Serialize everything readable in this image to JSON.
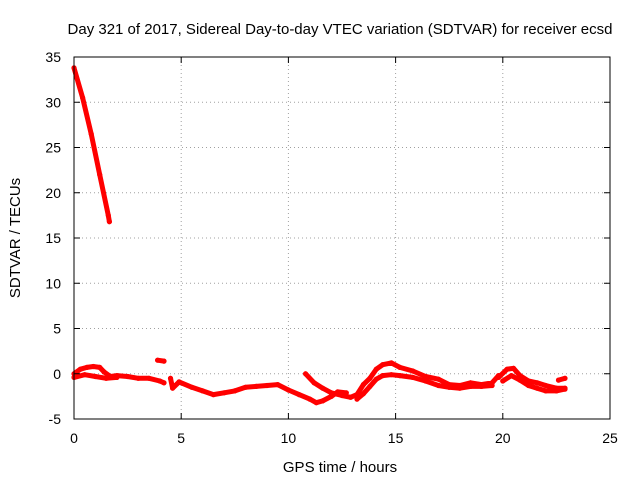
{
  "chart_data": {
    "type": "scatter",
    "title": "Day 321 of 2017, Sidereal Day-to-day VTEC variation (SDTVAR) for receiver ecsd",
    "xlabel": "GPS time / hours",
    "ylabel": "SDTVAR / TECUs",
    "xlim": [
      0,
      25
    ],
    "ylim": [
      -5,
      35
    ],
    "xticks": [
      "0",
      "5",
      "10",
      "15",
      "20",
      "25"
    ],
    "yticks": [
      "-5",
      "0",
      "5",
      "10",
      "15",
      "20",
      "25",
      "30",
      "35"
    ],
    "grid": true,
    "series": [
      {
        "name": "SDTVAR",
        "color": "#ff0000",
        "segments": [
          [
            [
              0.0,
              33.8
            ],
            [
              0.4,
              30.5
            ],
            [
              0.8,
              26.5
            ],
            [
              1.2,
              22.0
            ],
            [
              1.6,
              17.5
            ],
            [
              1.65,
              16.8
            ]
          ],
          [
            [
              0.0,
              0.0
            ],
            [
              0.3,
              0.5
            ],
            [
              0.6,
              0.7
            ],
            [
              0.9,
              0.8
            ],
            [
              1.2,
              0.7
            ],
            [
              1.4,
              0.2
            ],
            [
              1.7,
              -0.3
            ],
            [
              2.0,
              -0.2
            ],
            [
              2.5,
              -0.3
            ],
            [
              3.0,
              -0.5
            ],
            [
              3.5,
              -0.5
            ],
            [
              4.0,
              -0.8
            ],
            [
              4.2,
              -1.0
            ]
          ],
          [
            [
              0.0,
              -0.4
            ],
            [
              0.5,
              -0.1
            ],
            [
              1.0,
              -0.3
            ],
            [
              1.5,
              -0.5
            ],
            [
              2.0,
              -0.4
            ]
          ],
          [
            [
              3.9,
              1.5
            ],
            [
              4.2,
              1.4
            ]
          ],
          [
            [
              4.5,
              -0.5
            ],
            [
              4.6,
              -1.6
            ],
            [
              4.9,
              -0.9
            ],
            [
              5.5,
              -1.5
            ],
            [
              6.0,
              -1.9
            ],
            [
              6.5,
              -2.3
            ],
            [
              7.0,
              -2.1
            ],
            [
              7.5,
              -1.9
            ],
            [
              8.0,
              -1.5
            ],
            [
              8.5,
              -1.4
            ],
            [
              9.0,
              -1.3
            ],
            [
              9.5,
              -1.2
            ],
            [
              10.0,
              -1.8
            ],
            [
              10.5,
              -2.3
            ],
            [
              11.0,
              -2.8
            ],
            [
              11.3,
              -3.2
            ],
            [
              11.6,
              -3.0
            ],
            [
              12.0,
              -2.5
            ],
            [
              12.3,
              -2.0
            ],
            [
              12.7,
              -2.1
            ]
          ],
          [
            [
              10.8,
              0.0
            ],
            [
              11.2,
              -1.0
            ],
            [
              11.6,
              -1.6
            ],
            [
              12.0,
              -2.1
            ],
            [
              12.5,
              -2.4
            ],
            [
              12.9,
              -2.6
            ],
            [
              13.2,
              -2.3
            ],
            [
              13.5,
              -1.2
            ],
            [
              13.8,
              -0.5
            ],
            [
              14.1,
              0.5
            ],
            [
              14.4,
              1.0
            ],
            [
              14.8,
              1.2
            ],
            [
              15.2,
              0.7
            ],
            [
              15.8,
              0.3
            ],
            [
              16.4,
              -0.3
            ],
            [
              17.0,
              -0.6
            ],
            [
              17.5,
              -1.2
            ],
            [
              18.0,
              -1.3
            ],
            [
              18.5,
              -1.0
            ],
            [
              19.0,
              -1.2
            ],
            [
              19.5,
              -1.0
            ],
            [
              19.8,
              -0.2
            ]
          ],
          [
            [
              13.2,
              -2.8
            ],
            [
              13.5,
              -2.2
            ],
            [
              13.8,
              -1.4
            ],
            [
              14.1,
              -0.6
            ],
            [
              14.4,
              -0.2
            ],
            [
              14.8,
              -0.1
            ],
            [
              15.2,
              -0.2
            ],
            [
              15.8,
              -0.4
            ],
            [
              16.4,
              -0.8
            ],
            [
              17.0,
              -1.3
            ],
            [
              17.5,
              -1.5
            ],
            [
              18.0,
              -1.6
            ],
            [
              18.5,
              -1.4
            ],
            [
              19.0,
              -1.4
            ],
            [
              19.5,
              -1.3
            ]
          ],
          [
            [
              19.8,
              -0.4
            ],
            [
              20.2,
              0.5
            ],
            [
              20.5,
              0.6
            ],
            [
              20.8,
              -0.2
            ],
            [
              21.2,
              -0.8
            ],
            [
              21.6,
              -1.0
            ],
            [
              22.0,
              -1.3
            ],
            [
              22.5,
              -1.6
            ],
            [
              22.9,
              -1.6
            ]
          ],
          [
            [
              20.0,
              -0.8
            ],
            [
              20.4,
              -0.2
            ],
            [
              20.8,
              -0.7
            ],
            [
              21.2,
              -1.3
            ],
            [
              21.6,
              -1.6
            ],
            [
              22.0,
              -1.9
            ],
            [
              22.5,
              -1.9
            ],
            [
              22.9,
              -1.7
            ]
          ],
          [
            [
              22.6,
              -0.7
            ],
            [
              22.9,
              -0.5
            ]
          ]
        ]
      }
    ]
  }
}
